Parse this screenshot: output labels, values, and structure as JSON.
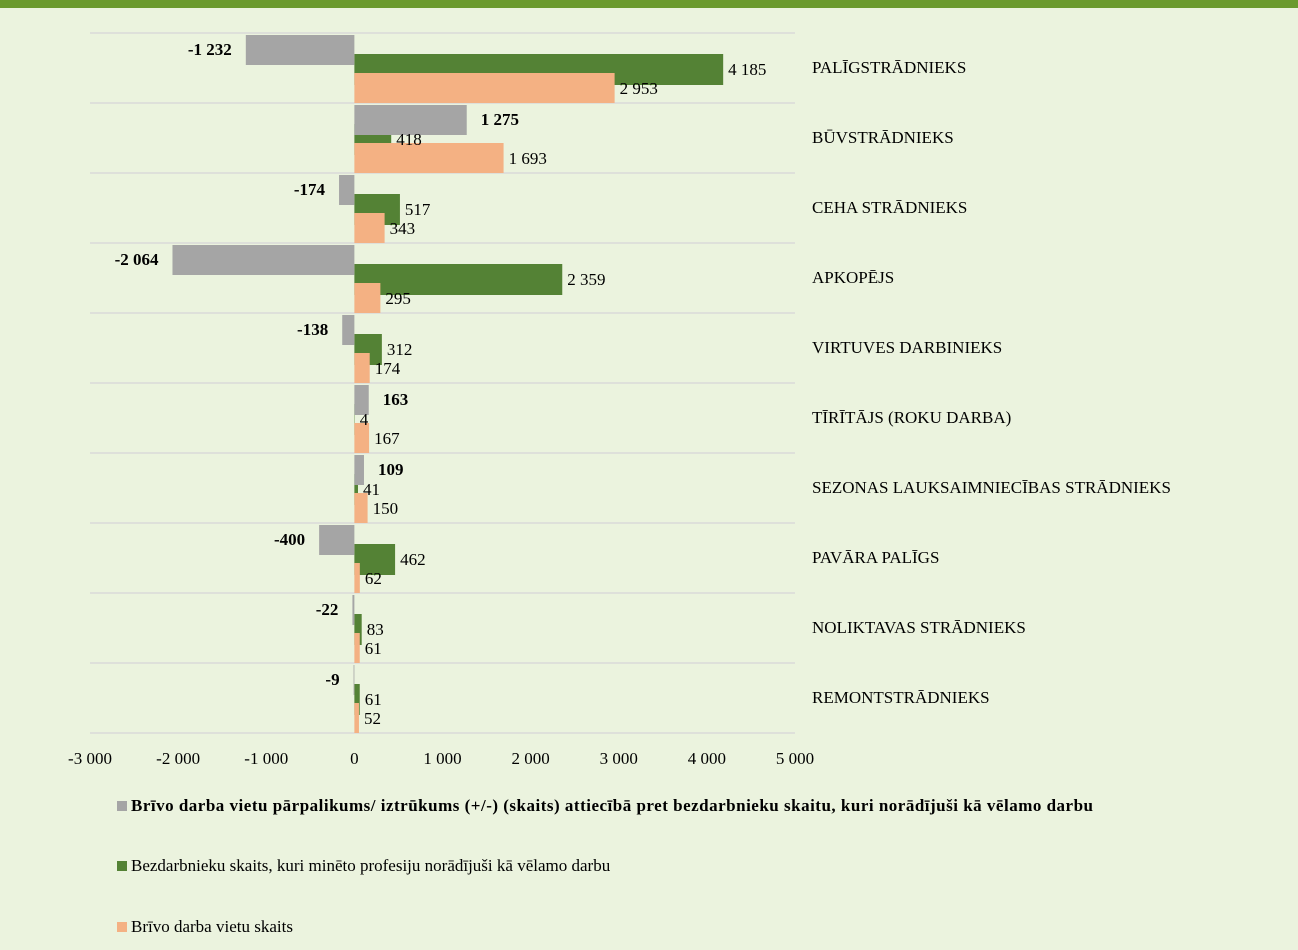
{
  "chart_data": {
    "type": "hbar",
    "categories": [
      "PALĪGSTRĀDNIEKS",
      "BŪVSTRĀDNIEKS",
      "CEHA STRĀDNIEKS",
      "APKOPĒJS",
      "VIRTUVES DARBINIEKS",
      "TĪRĪTĀJS (ROKU DARBA)",
      "SEZONAS LAUKSAIMNIECĪBAS STRĀDNIEKS",
      "PAVĀRA PALĪGS",
      "NOLIKTAVAS STRĀDNIEKS",
      "REMONTSTRĀDNIEKS"
    ],
    "series": [
      {
        "name": "Brīvo darba vietu pārpalikums/ iztrūkums (+/-) (skaits) attiecībā pret bezdarbnieku skaitu, kuri norādījuši kā vēlamo darbu",
        "color": "#a5a5a5",
        "values": [
          -1232,
          1275,
          -174,
          -2064,
          -138,
          163,
          109,
          -400,
          -22,
          -9
        ],
        "value_labels": [
          "-1 232",
          "1 275",
          "-174",
          "-2 064",
          "-138",
          "163",
          "109",
          "-400",
          "-22",
          "-9"
        ]
      },
      {
        "name": "Bezdarbnieku skaits, kuri minēto profesiju norādījuši kā vēlamo darbu",
        "color": "#548235",
        "values": [
          4185,
          418,
          517,
          2359,
          312,
          4,
          41,
          462,
          83,
          61
        ],
        "value_labels": [
          "4 185",
          "418",
          "517",
          "2 359",
          "312",
          "4",
          "41",
          "462",
          "83",
          "61"
        ]
      },
      {
        "name": "Brīvo darba vietu skaits",
        "color": "#f4b183",
        "values": [
          2953,
          1693,
          343,
          295,
          174,
          167,
          150,
          62,
          61,
          52
        ],
        "value_labels": [
          "2 953",
          "1 693",
          "343",
          "295",
          "174",
          "167",
          "150",
          "62",
          "61",
          "52"
        ]
      }
    ],
    "xlim": [
      -3000,
      5000
    ],
    "xticks": [
      {
        "value": -3000,
        "label": "-3 000"
      },
      {
        "value": -2000,
        "label": "-2 000"
      },
      {
        "value": -1000,
        "label": "-1 000"
      },
      0,
      {
        "value": 1000,
        "label": "1 000"
      },
      {
        "value": 2000,
        "label": "2 000"
      },
      {
        "value": 3000,
        "label": "3 000"
      },
      {
        "value": 4000,
        "label": "4 000"
      },
      {
        "value": 5000,
        "label": "5 000"
      }
    ],
    "legend": "bottom"
  }
}
